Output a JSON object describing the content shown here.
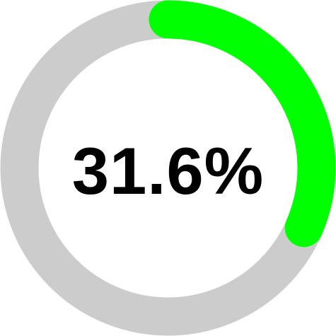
{
  "progress": {
    "value": 0.316,
    "label": "31.6%",
    "track_color": "#cccccc",
    "fill_color": "#00ff00",
    "text_color": "#000000"
  }
}
